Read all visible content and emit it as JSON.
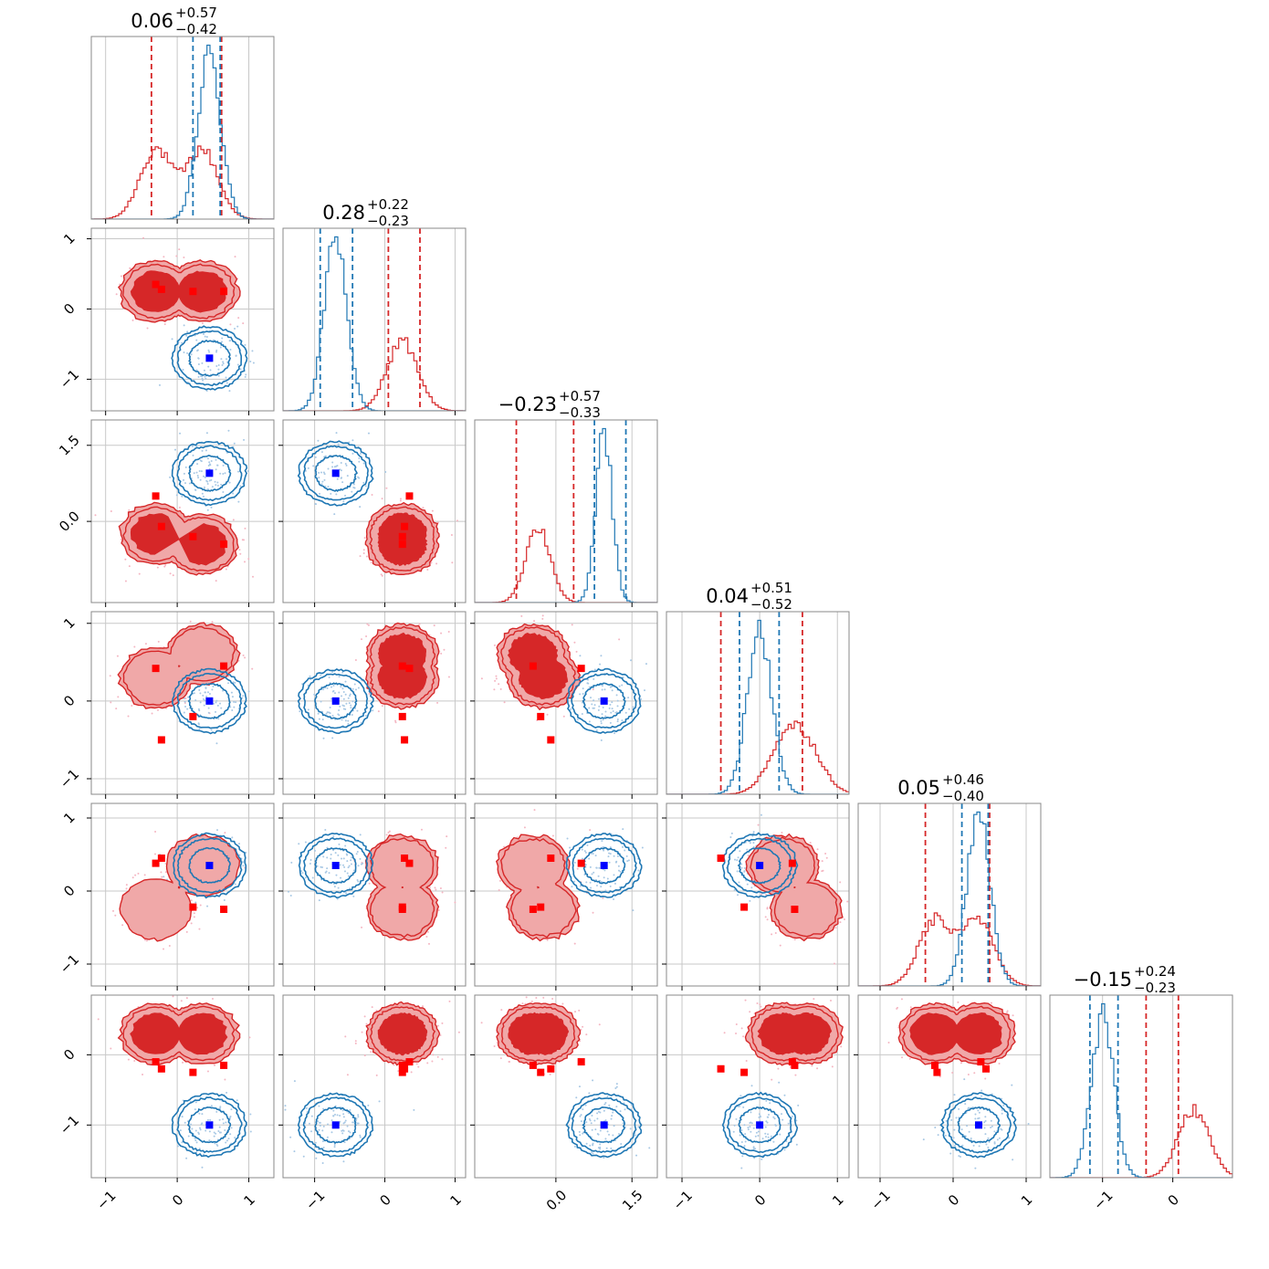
{
  "chart_data": {
    "type": "corner",
    "dimensions": 6,
    "colors": {
      "red": "#d62728",
      "red_fill": "#f0a8a8",
      "red_dark": "#d62728",
      "blue": "#1f77b4",
      "red_marker": "#ff0000",
      "blue_marker": "#0000ff",
      "grid": "#c8c8c8",
      "frame": "#888888",
      "red_scatter": "#f4b6c2",
      "blue_scatter": "#a8c8e4"
    },
    "grid": true,
    "titles": [
      {
        "value": "0.06",
        "plus": "+0.57",
        "minus": "−0.42"
      },
      {
        "value": "0.28",
        "plus": "+0.22",
        "minus": "−0.23"
      },
      {
        "value": "−0.23",
        "plus": "+0.57",
        "minus": "−0.33"
      },
      {
        "value": "0.04",
        "plus": "+0.51",
        "minus": "−0.52"
      },
      {
        "value": "0.05",
        "plus": "+0.46",
        "minus": "−0.40"
      },
      {
        "value": "−0.15",
        "plus": "+0.24",
        "minus": "−0.23"
      }
    ],
    "ranges": [
      [
        -1.2,
        1.35
      ],
      [
        -1.45,
        1.15
      ],
      [
        -1.6,
        2.0
      ],
      [
        -1.2,
        1.15
      ],
      [
        -1.3,
        1.2
      ],
      [
        -1.75,
        0.85
      ]
    ],
    "ticks": [
      {
        "values": [
          -1,
          0,
          1
        ],
        "labels": [
          "−1",
          "0",
          "1"
        ]
      },
      {
        "values": [
          -1,
          0,
          1
        ],
        "labels": [
          "−1",
          "0",
          "1"
        ]
      },
      {
        "values": [
          0.0,
          1.5
        ],
        "labels": [
          "0.0",
          "1.5"
        ]
      },
      {
        "values": [
          -1,
          0,
          1
        ],
        "labels": [
          "−1",
          "0",
          "1"
        ]
      },
      {
        "values": [
          -1,
          0,
          1
        ],
        "labels": [
          "−1",
          "0",
          "1"
        ]
      },
      {
        "values": [
          -1,
          0
        ],
        "labels": [
          "−1",
          "0"
        ]
      }
    ],
    "quantiles": {
      "red": [
        [
          -0.36,
          0.62
        ],
        [
          0.05,
          0.5
        ],
        [
          -0.78,
          0.35
        ],
        [
          -0.5,
          0.55
        ],
        [
          -0.38,
          0.5
        ],
        [
          -0.38,
          0.08
        ]
      ],
      "blue": [
        [
          0.22,
          0.6
        ],
        [
          -0.92,
          -0.46
        ],
        [
          0.76,
          1.38
        ],
        [
          -0.26,
          0.25
        ],
        [
          0.12,
          0.48
        ],
        [
          -1.18,
          -0.78
        ]
      ]
    },
    "red_modes": [
      [
        -0.3,
        0.35
      ],
      [
        0.25,
        0.25
      ],
      [
        -0.25,
        -0.45
      ],
      [
        0.6,
        0.3
      ],
      [
        -0.25,
        0.35
      ],
      [
        0.3,
        0.3
      ]
    ],
    "blue_mode": [
      0.45,
      -0.7,
      0.95,
      0.0,
      0.35,
      -1.0
    ],
    "marker_points": {
      "red": [
        [
          0.65,
          0.25,
          -0.45,
          0.45,
          -0.25,
          -0.15
        ],
        [
          -0.3,
          0.35,
          0.5,
          0.42,
          0.38,
          -0.1
        ],
        [
          0.22,
          0.25,
          -0.3,
          -0.2,
          -0.22,
          -0.25
        ],
        [
          -0.22,
          0.28,
          -0.1,
          -0.5,
          0.45,
          -0.2
        ]
      ],
      "blue": [
        0.45,
        -0.7,
        0.95,
        0.0,
        0.35,
        -1.0
      ]
    }
  }
}
